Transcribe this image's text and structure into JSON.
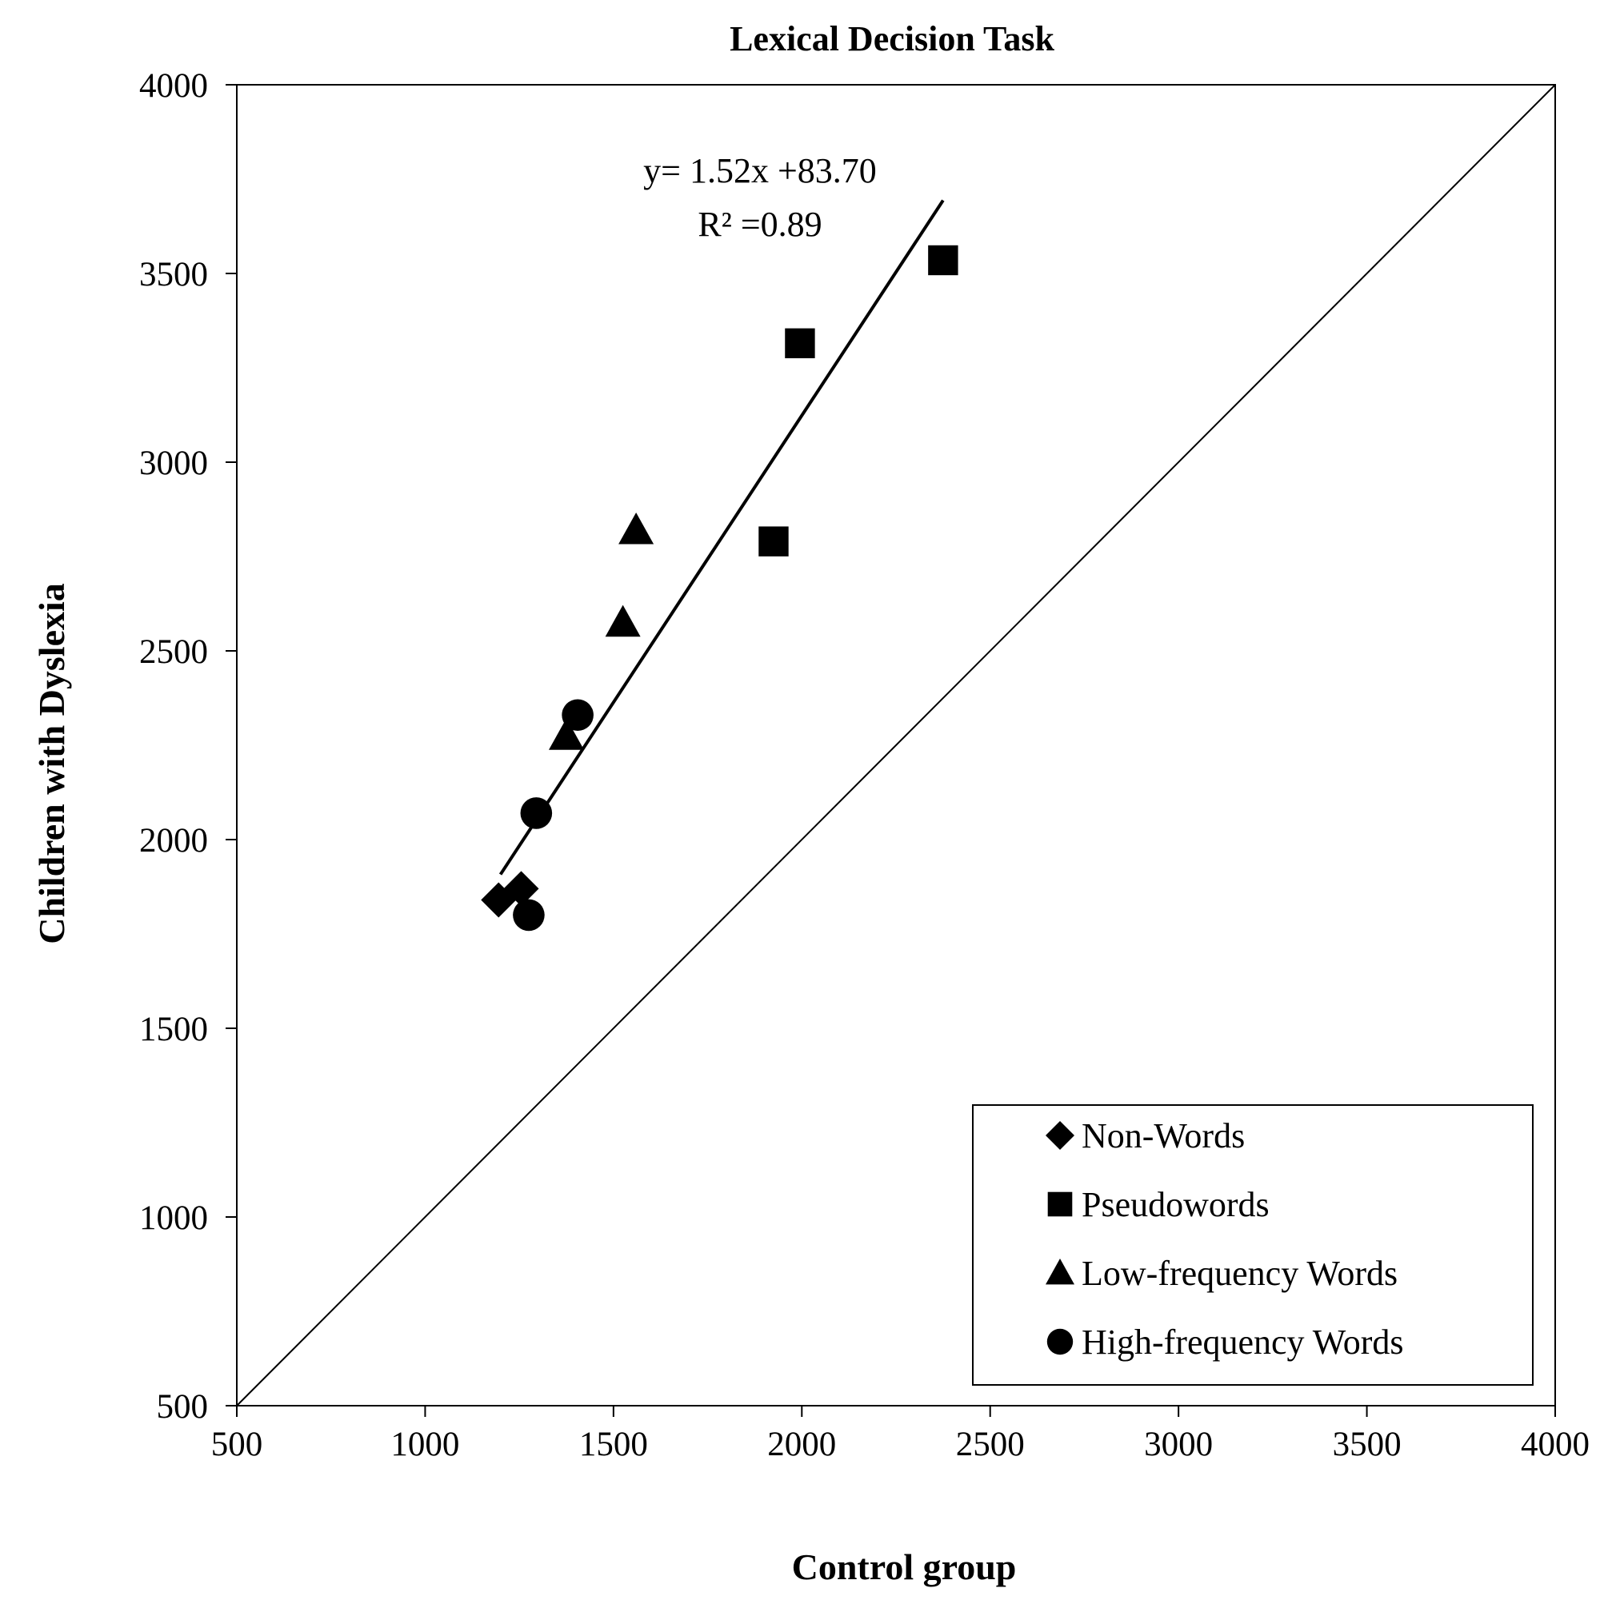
{
  "chart_data": {
    "type": "scatter",
    "title": "Lexical Decision Task",
    "xlabel": "Control group",
    "ylabel": "Children with Dyslexia",
    "xlim": [
      500,
      4000
    ],
    "ylim": [
      500,
      4000
    ],
    "xticks": [
      "500",
      "1000",
      "1500",
      "2000",
      "2500",
      "3000",
      "3500",
      "4000"
    ],
    "yticks": [
      "500",
      "1000",
      "1500",
      "2000",
      "2500",
      "3000",
      "3500",
      "4000"
    ],
    "grid": false,
    "legend_position": "bottom-right",
    "series": [
      {
        "name": "Non-Words",
        "marker": "diamond",
        "x": [
          1195,
          1255
        ],
        "y": [
          1840,
          1870
        ]
      },
      {
        "name": "Pseudowords",
        "marker": "square",
        "x": [
          2375,
          1995,
          1925
        ],
        "y": [
          3535,
          3315,
          2790
        ]
      },
      {
        "name": "Low-frequency Words",
        "marker": "triangle",
        "x": [
          1560,
          1525,
          1375
        ],
        "y": [
          2820,
          2575,
          2275
        ]
      },
      {
        "name": "High-frequency Words",
        "marker": "circle",
        "x": [
          1405,
          1295,
          1275
        ],
        "y": [
          2330,
          2070,
          1800
        ]
      }
    ],
    "trendline": {
      "equation": "y= 1.52x +83.70",
      "r2": "R² =0.89",
      "x_range": [
        1200,
        2375
      ]
    },
    "reference_line": {
      "type": "identity",
      "x": [
        500,
        4000
      ],
      "y": [
        500,
        4000
      ]
    }
  },
  "colors": {
    "marker": "#000000",
    "line": "#000000",
    "background": "#ffffff"
  }
}
